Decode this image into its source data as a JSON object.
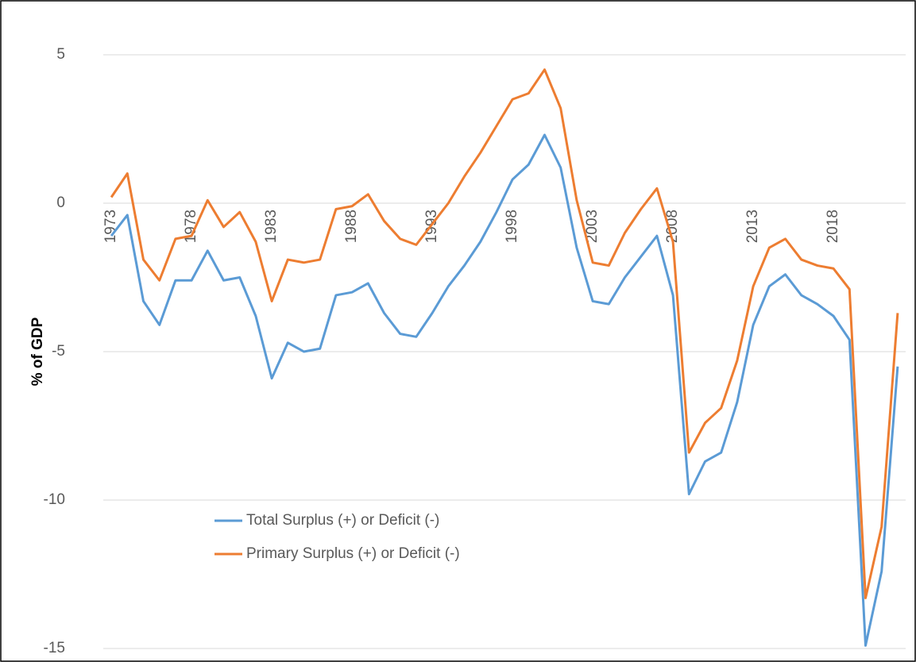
{
  "chart_data": {
    "type": "line",
    "y_label": "% of GDP",
    "x": [
      1973,
      1974,
      1975,
      1976,
      1977,
      1978,
      1979,
      1980,
      1981,
      1982,
      1983,
      1984,
      1985,
      1986,
      1987,
      1988,
      1989,
      1990,
      1991,
      1992,
      1993,
      1994,
      1995,
      1996,
      1997,
      1998,
      1999,
      2000,
      2001,
      2002,
      2003,
      2004,
      2005,
      2006,
      2007,
      2008,
      2009,
      2010,
      2011,
      2012,
      2013,
      2014,
      2015,
      2016,
      2017,
      2018,
      2019,
      2020,
      2021,
      2022
    ],
    "xlim": [
      1972.5,
      2022.5
    ],
    "xticks": [
      1973,
      1978,
      1983,
      1988,
      1993,
      1998,
      2003,
      2008,
      2013,
      2018
    ],
    "ylim": [
      -15,
      5
    ],
    "yticks": [
      5,
      0,
      -5,
      -10,
      -15
    ],
    "grid": true,
    "series": [
      {
        "name": "Total Surplus (+) or Deficit (-)",
        "color": "#5b9bd5",
        "values": [
          -1.1,
          -0.4,
          -3.3,
          -4.1,
          -2.6,
          -2.6,
          -1.6,
          -2.6,
          -2.5,
          -3.8,
          -5.9,
          -4.7,
          -5.0,
          -4.9,
          -3.1,
          -3.0,
          -2.7,
          -3.7,
          -4.4,
          -4.5,
          -3.7,
          -2.8,
          -2.1,
          -1.3,
          -0.3,
          0.8,
          1.3,
          2.3,
          1.2,
          -1.5,
          -3.3,
          -3.4,
          -2.5,
          -1.8,
          -1.1,
          -3.1,
          -9.8,
          -8.7,
          -8.4,
          -6.7,
          -4.1,
          -2.8,
          -2.4,
          -3.1,
          -3.4,
          -3.8,
          -4.6,
          -14.9,
          -12.4,
          -5.5
        ]
      },
      {
        "name": "Primary Surplus (+) or Deficit (-)",
        "color": "#ed7d31",
        "values": [
          0.2,
          1.0,
          -1.9,
          -2.6,
          -1.2,
          -1.1,
          0.1,
          -0.8,
          -0.3,
          -1.3,
          -3.3,
          -1.9,
          -2.0,
          -1.9,
          -0.2,
          -0.1,
          0.3,
          -0.6,
          -1.2,
          -1.4,
          -0.7,
          0.0,
          0.9,
          1.7,
          2.6,
          3.5,
          3.7,
          4.5,
          3.2,
          0.1,
          -2.0,
          -2.1,
          -1.0,
          -0.2,
          0.5,
          -1.3,
          -8.4,
          -7.4,
          -6.9,
          -5.3,
          -2.8,
          -1.5,
          -1.2,
          -1.9,
          -2.1,
          -2.2,
          -2.9,
          -13.3,
          -10.9,
          -3.7
        ]
      }
    ]
  }
}
